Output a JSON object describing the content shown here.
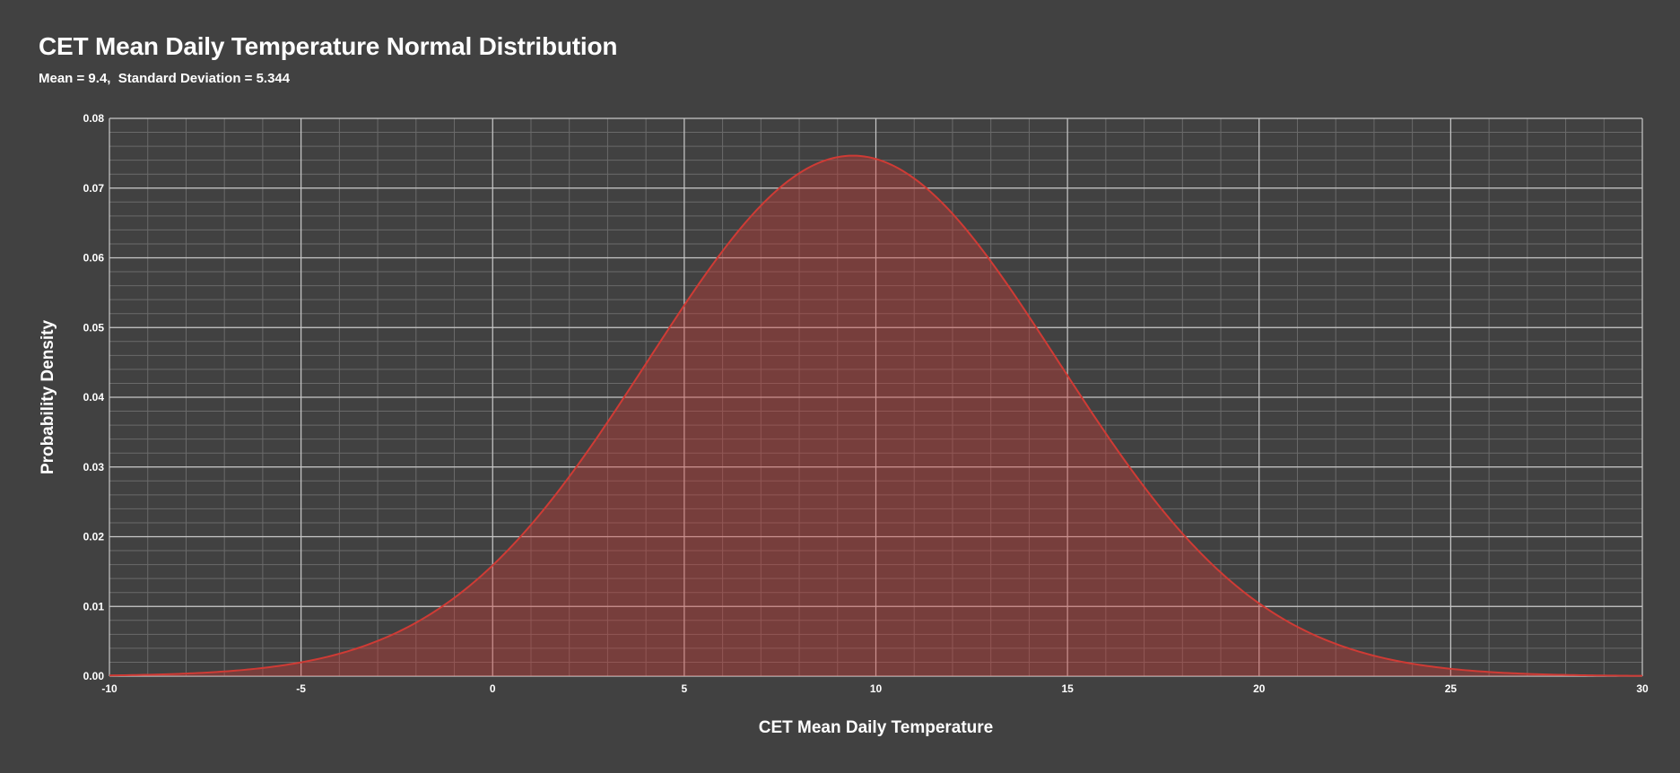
{
  "chart_data": {
    "type": "area",
    "title": "CET Mean Daily Temperature Normal Distribution",
    "subtitle": "Mean = 9.4,  Standard Deviation = 5.344",
    "xlabel": "CET Mean Daily Temperature",
    "ylabel": "Probability Density",
    "distribution": {
      "kind": "normal",
      "mean": 9.4,
      "sd": 5.344
    },
    "xlim": [
      -10,
      30
    ],
    "ylim": [
      0,
      0.08
    ],
    "x_ticks": [
      -10,
      -5,
      0,
      5,
      10,
      15,
      20,
      25,
      30
    ],
    "y_ticks": [
      0,
      0.01,
      0.02,
      0.03,
      0.04,
      0.05,
      0.06,
      0.07,
      0.08
    ],
    "x_tick_labels": [
      "-10",
      "-5",
      "0",
      "5",
      "10",
      "15",
      "20",
      "25",
      "30"
    ],
    "y_tick_labels": [
      "0.00",
      "0.01",
      "0.02",
      "0.03",
      "0.04",
      "0.05",
      "0.06",
      "0.07",
      "0.08"
    ],
    "x_minor_step": 1,
    "y_minor_step": 0.002,
    "grid": true,
    "legend": "none",
    "colors": {
      "background": "#414141",
      "curve": "#cf3b35",
      "fill": "#cf3b35",
      "grid_major": "#c8c8c8",
      "grid_minor": "#6a6a6a"
    }
  }
}
